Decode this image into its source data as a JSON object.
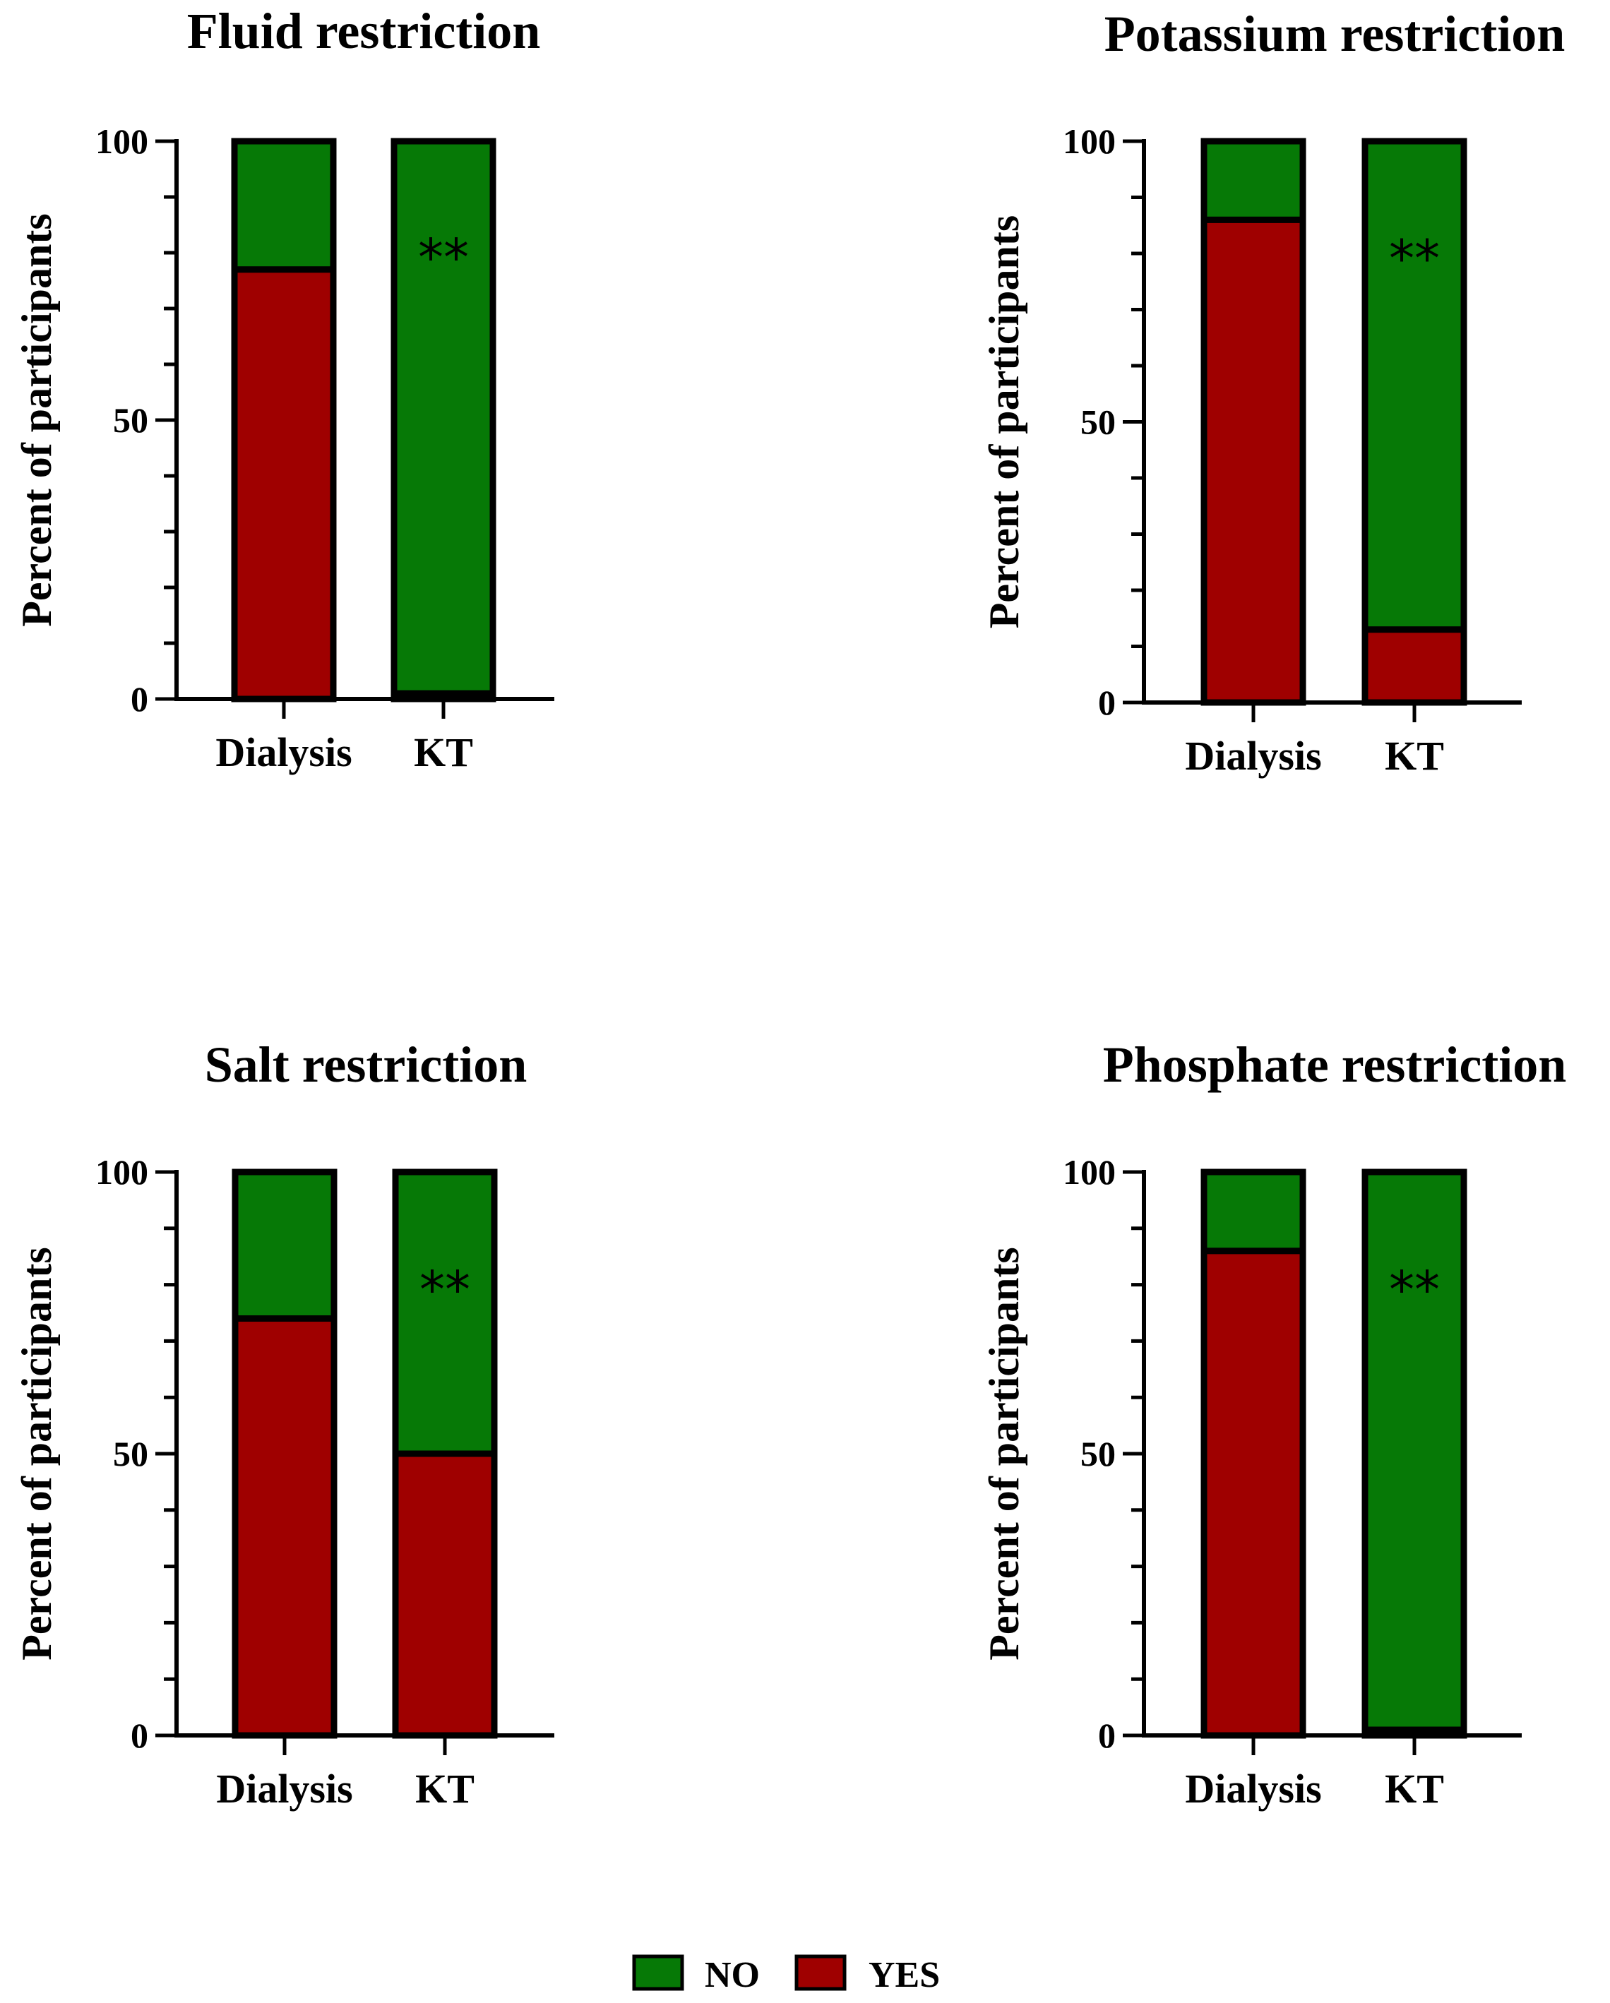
{
  "colors": {
    "no": "#067906",
    "yes": "#9f0000",
    "outline": "#000000"
  },
  "chart_data": [
    {
      "type": "bar",
      "stacked": true,
      "title": "Fluid restriction",
      "xlabel": "",
      "ylabel": "Percent of participants",
      "ylim": [
        0,
        100
      ],
      "yticks": [
        "0",
        "50",
        "100"
      ],
      "categories": [
        "Dialysis",
        "KT"
      ],
      "series": [
        {
          "name": "YES",
          "values": [
            77,
            1
          ]
        },
        {
          "name": "NO",
          "values": [
            23,
            99
          ]
        }
      ],
      "annotations": [
        {
          "category": "KT",
          "text": "**"
        }
      ]
    },
    {
      "type": "bar",
      "stacked": true,
      "title": "Potassium restriction",
      "xlabel": "",
      "ylabel": "Percent of participants",
      "ylim": [
        0,
        100
      ],
      "yticks": [
        "0",
        "50",
        "100"
      ],
      "categories": [
        "Dialysis",
        "KT"
      ],
      "series": [
        {
          "name": "YES",
          "values": [
            86,
            13
          ]
        },
        {
          "name": "NO",
          "values": [
            14,
            87
          ]
        }
      ],
      "annotations": [
        {
          "category": "KT",
          "text": "**"
        }
      ]
    },
    {
      "type": "bar",
      "stacked": true,
      "title": "Salt restriction",
      "xlabel": "",
      "ylabel": "Percent of participants",
      "ylim": [
        0,
        100
      ],
      "yticks": [
        "0",
        "50",
        "100"
      ],
      "categories": [
        "Dialysis",
        "KT"
      ],
      "series": [
        {
          "name": "YES",
          "values": [
            74,
            50
          ]
        },
        {
          "name": "NO",
          "values": [
            26,
            50
          ]
        }
      ],
      "annotations": [
        {
          "category": "KT",
          "text": "**"
        }
      ]
    },
    {
      "type": "bar",
      "stacked": true,
      "title": "Phosphate restriction",
      "xlabel": "",
      "ylabel": "Percent of participants",
      "ylim": [
        0,
        100
      ],
      "yticks": [
        "0",
        "50",
        "100"
      ],
      "categories": [
        "Dialysis",
        "KT"
      ],
      "series": [
        {
          "name": "YES",
          "values": [
            86,
            1
          ]
        },
        {
          "name": "NO",
          "values": [
            14,
            99
          ]
        }
      ],
      "annotations": [
        {
          "category": "KT",
          "text": "**"
        }
      ]
    }
  ],
  "legend": {
    "position": "bottom-center",
    "items": [
      {
        "label": "NO",
        "series": "NO"
      },
      {
        "label": "YES",
        "series": "YES"
      }
    ]
  }
}
